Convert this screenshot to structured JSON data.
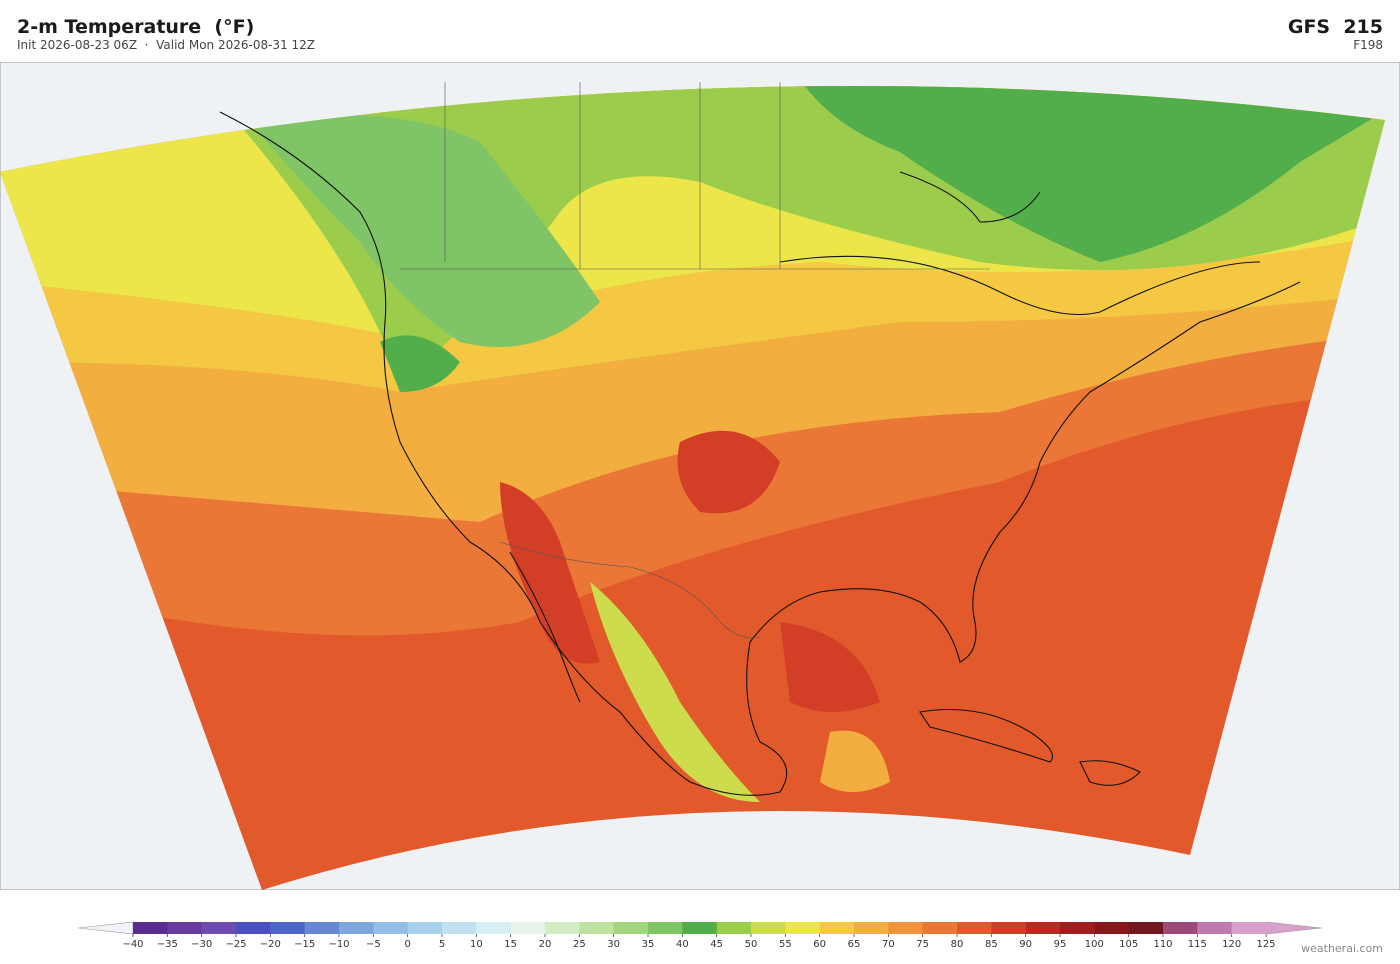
{
  "header": {
    "title": "2-m Temperature  (°F)",
    "subtitle": "Init 2026-08-23 06Z  ·  Valid Mon 2026-08-31 12Z",
    "model": "GFS  215",
    "forecast_hour": "F198"
  },
  "colorbar": {
    "ticks": [
      {
        "value": -40,
        "label": "−40"
      },
      {
        "value": -35,
        "label": "−35"
      },
      {
        "value": -30,
        "label": "−30"
      },
      {
        "value": -25,
        "label": "−25"
      },
      {
        "value": -20,
        "label": "−20"
      },
      {
        "value": -15,
        "label": "−15"
      },
      {
        "value": -10,
        "label": "−10"
      },
      {
        "value": -5,
        "label": "−5"
      },
      0,
      5,
      10,
      15,
      20,
      25,
      30,
      35,
      40,
      45,
      50,
      55,
      60,
      65,
      70,
      75,
      80,
      85,
      90,
      95,
      100,
      105,
      110,
      115,
      120,
      125
    ],
    "colors": [
      "#5b2c8f",
      "#6a3a9e",
      "#6f4cb0",
      "#4a4fc0",
      "#4e66cc",
      "#6888d4",
      "#7fa6dc",
      "#93bde4",
      "#a9d0ea",
      "#c0e2f0",
      "#d6eef4",
      "#e6f4ec",
      "#d2ecc4",
      "#bfe29e",
      "#a2d57f",
      "#7fc466",
      "#52ad4b",
      "#9ccc4c",
      "#cddc4c",
      "#ece64a",
      "#f4c843",
      "#f3ae40",
      "#ef933b",
      "#ea7736",
      "#e25a2c",
      "#d23f26",
      "#bb2a22",
      "#a01d1e",
      "#86181c",
      "#721820",
      "#9c4a7a",
      "#c07ab0",
      "#d8a0cc"
    ]
  },
  "watermark": "weatherai.com"
}
